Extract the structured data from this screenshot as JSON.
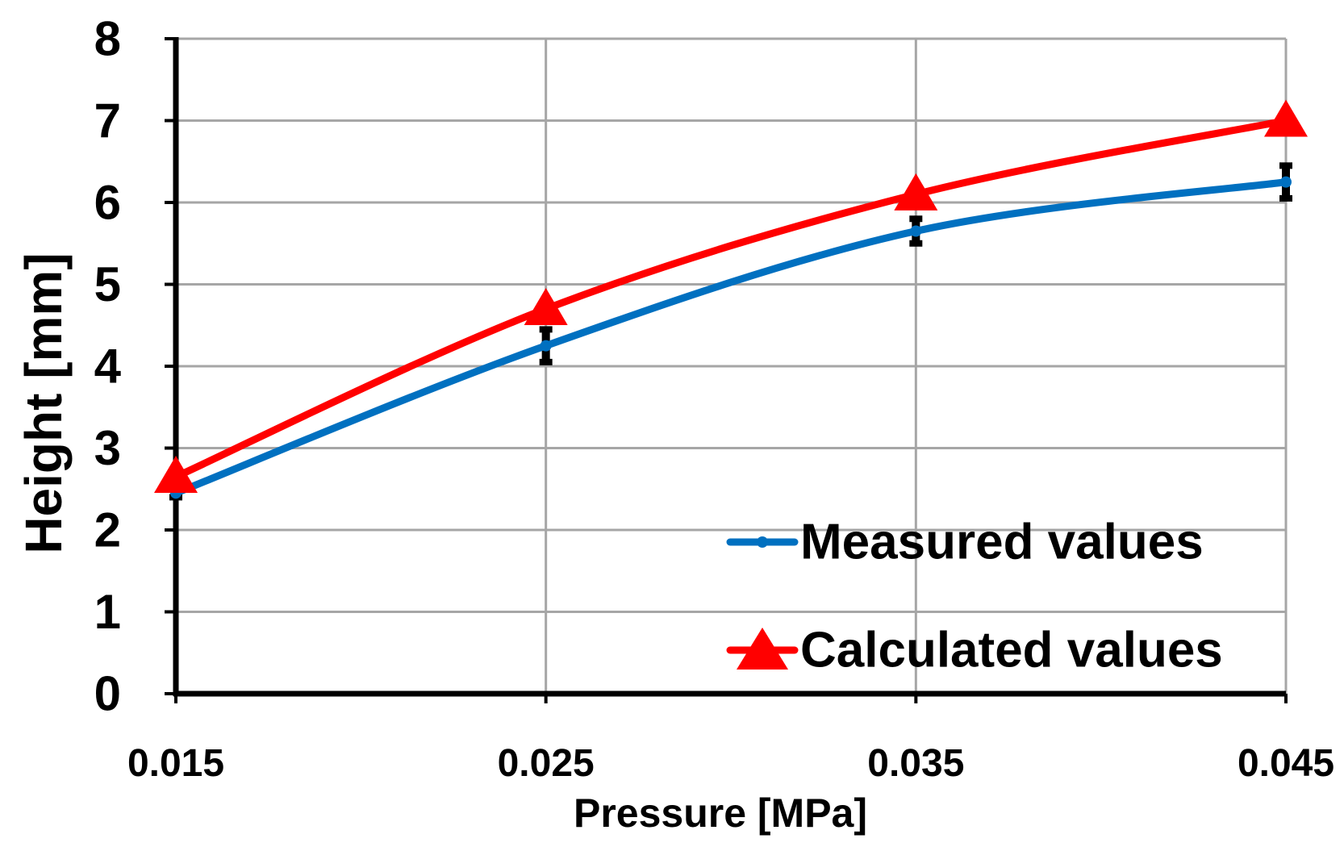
{
  "chart_data": {
    "type": "line",
    "title": "",
    "xlabel": "Pressure [MPa]",
    "ylabel": "Height [mm]",
    "x": [
      0.015,
      0.025,
      0.035,
      0.045
    ],
    "x_tick_labels": [
      "0.015",
      "0.025",
      "0.035",
      "0.045"
    ],
    "xlim": [
      0.015,
      0.045
    ],
    "ylim": [
      0,
      8
    ],
    "y_ticks": [
      0,
      1,
      2,
      3,
      4,
      5,
      6,
      7,
      8
    ],
    "y_tick_labels": [
      "0",
      "1",
      "2",
      "3",
      "4",
      "5",
      "6",
      "7",
      "8"
    ],
    "grid": true,
    "legend_position": "bottom-right",
    "series": [
      {
        "name": "Measured values",
        "values": [
          2.45,
          4.25,
          5.65,
          6.25
        ],
        "error": [
          0.05,
          0.2,
          0.15,
          0.2
        ],
        "color": "#0070C0",
        "marker": "circle"
      },
      {
        "name": "Calculated values",
        "values": [
          2.65,
          4.7,
          6.1,
          7.0
        ],
        "color": "#FF0000",
        "marker": "triangle"
      }
    ]
  }
}
